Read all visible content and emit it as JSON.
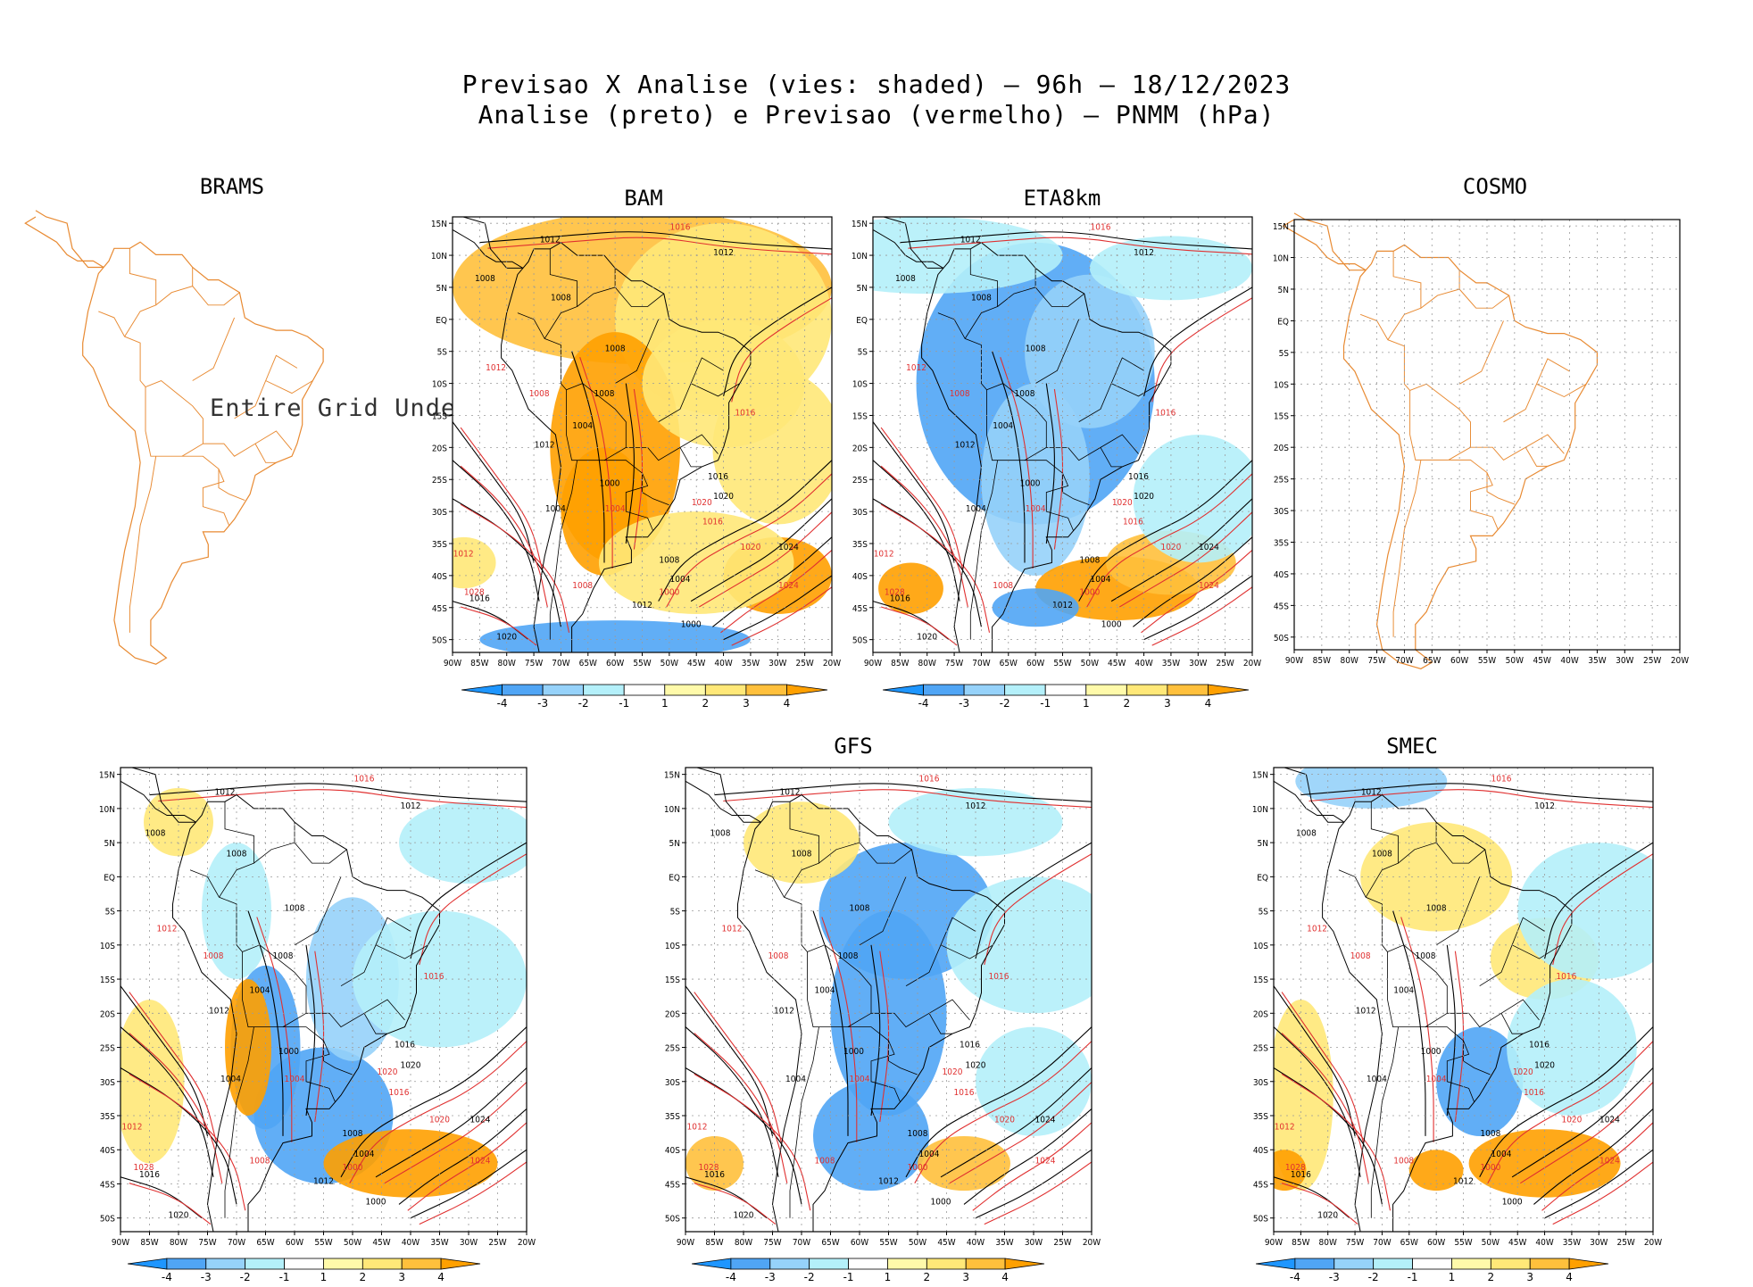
{
  "header": {
    "line1": "Previsao X Analise (vies: shaded) – 96h – 18/12/2023",
    "line2": "Analise (preto) e Previsao (vermelho) – PNMM (hPa)"
  },
  "panels": [
    {
      "id": "brams",
      "title": "BRAMS",
      "message": "Entire Grid Undef"
    },
    {
      "id": "bam",
      "title": "BAM"
    },
    {
      "id": "eta8km",
      "title": "ETA8km"
    },
    {
      "id": "cosmo",
      "title": "COSMO"
    },
    {
      "id": "wrf",
      "title": ""
    },
    {
      "id": "gfs",
      "title": "GFS"
    },
    {
      "id": "smec",
      "title": "SMEC"
    }
  ],
  "axes": {
    "lat_labels": [
      "15N",
      "10N",
      "5N",
      "EQ",
      "5S",
      "10S",
      "15S",
      "20S",
      "25S",
      "30S",
      "35S",
      "40S",
      "45S",
      "50S"
    ],
    "lon_labels": [
      "90W",
      "85W",
      "80W",
      "75W",
      "70W",
      "65W",
      "60W",
      "55W",
      "50W",
      "45W",
      "40W",
      "35W",
      "30W",
      "25W",
      "20W"
    ]
  },
  "colorbar": {
    "labels": [
      "-4",
      "-3",
      "-2",
      "-1",
      "1",
      "2",
      "3",
      "4"
    ],
    "colors": [
      "#1e96ff",
      "#50a5f5",
      "#96d2fa",
      "#b4f0fa",
      "#ffffff",
      "#fffaaa",
      "#ffe878",
      "#ffc03c",
      "#ffa000"
    ]
  },
  "colors": {
    "analysis_contour": "#000000",
    "forecast_contour": "#e03030",
    "map_outline": "#e88a32",
    "grid": "#9a9a9a"
  },
  "contour_labels": {
    "analysis": [
      "1012",
      "1012",
      "1008",
      "1008",
      "1008",
      "1008",
      "1004",
      "1000",
      "1004",
      "1012",
      "1016",
      "1020",
      "1008",
      "1004",
      "1000",
      "1016",
      "1020",
      "1012",
      "1024"
    ],
    "forecast": [
      "1016",
      "1016",
      "1012",
      "1008",
      "1000",
      "1020",
      "1012",
      "1016",
      "1020",
      "1028",
      "1004",
      "1008",
      "1024"
    ]
  }
}
